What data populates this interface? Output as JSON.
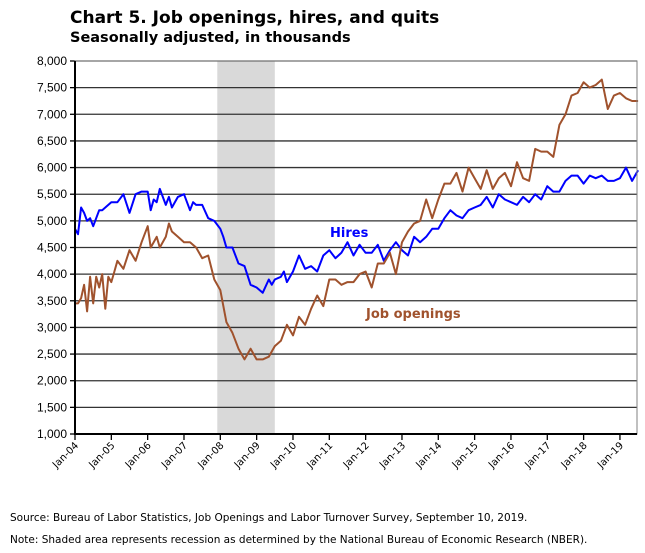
{
  "header": {
    "title": "Chart 5. Job openings, hires, and quits",
    "subtitle": "Seasonally adjusted, in thousands"
  },
  "footer": {
    "source": "Source: Bureau of Labor Statistics, Job Openings and Labor Turnover Survey, September 10, 2019.",
    "note": "Note: Shaded area represents recession as determined by the National Bureau of Economic Research (NBER)."
  },
  "colors": {
    "hires": "#0000ff",
    "job_openings": "#a0522d",
    "recession": "#d9d9d9",
    "grid": "#000000"
  },
  "chart_data": {
    "type": "line",
    "title": "Chart 5. Job openings, hires, and quits",
    "subtitle": "Seasonally adjusted, in thousands",
    "xlabel": "",
    "ylabel": "",
    "ylim": [
      1000,
      8000
    ],
    "yticks": [
      "1,000",
      "1,500",
      "2,000",
      "2,500",
      "3,000",
      "3,500",
      "4,000",
      "4,500",
      "5,000",
      "5,500",
      "6,000",
      "6,500",
      "7,000",
      "7,500",
      "8,000"
    ],
    "xticks": [
      "Jan-04",
      "Jan-05",
      "Jan-06",
      "Jan-07",
      "Jan-08",
      "Jan-09",
      "Jan-10",
      "Jan-11",
      "Jan-12",
      "Jan-13",
      "Jan-14",
      "Jan-15",
      "Jan-16",
      "Jan-17",
      "Jan-18",
      "Jan-19"
    ],
    "grid": true,
    "legend": "inline labels",
    "annotations": [
      {
        "text": "Hires",
        "series": "Hires"
      },
      {
        "text": "Job openings",
        "series": "Job openings"
      }
    ],
    "recession_shading": {
      "start": "Dec-07",
      "end": "Jun-09"
    },
    "x_unit": "months since Jan-04",
    "series": [
      {
        "name": "Hires",
        "x": [
          0,
          1,
          2,
          3,
          4,
          5,
          6,
          7,
          8,
          9,
          10,
          12,
          14,
          16,
          18,
          20,
          22,
          24,
          25,
          26,
          27,
          28,
          30,
          31,
          32,
          34,
          36,
          38,
          39,
          40,
          42,
          44,
          46,
          48,
          49,
          50,
          52,
          54,
          56,
          58,
          60,
          62,
          64,
          65,
          66,
          68,
          69,
          70,
          72,
          74,
          76,
          78,
          80,
          82,
          84,
          86,
          88,
          90,
          92,
          94,
          96,
          98,
          100,
          102,
          104,
          106,
          108,
          110,
          112,
          114,
          116,
          118,
          120,
          122,
          124,
          126,
          128,
          130,
          132,
          134,
          136,
          138,
          140,
          142,
          144,
          146,
          148,
          150,
          152,
          154,
          156,
          158,
          160,
          162,
          164,
          166,
          168,
          170,
          172,
          174,
          176,
          178,
          180,
          182,
          184,
          186
        ],
        "values": [
          4850,
          4750,
          5250,
          5150,
          5000,
          5050,
          4900,
          5050,
          5200,
          5200,
          5250,
          5350,
          5350,
          5500,
          5150,
          5500,
          5550,
          5550,
          5200,
          5400,
          5350,
          5600,
          5300,
          5450,
          5250,
          5450,
          5500,
          5200,
          5350,
          5300,
          5300,
          5050,
          5000,
          4850,
          4700,
          4500,
          4500,
          4200,
          4150,
          3800,
          3750,
          3650,
          3900,
          3800,
          3900,
          3950,
          4050,
          3850,
          4050,
          4350,
          4100,
          4150,
          4050,
          4350,
          4450,
          4300,
          4400,
          4600,
          4350,
          4550,
          4400,
          4400,
          4550,
          4250,
          4450,
          4600,
          4450,
          4350,
          4700,
          4600,
          4700,
          4850,
          4850,
          5050,
          5200,
          5100,
          5050,
          5200,
          5250,
          5300,
          5450,
          5250,
          5500,
          5400,
          5350,
          5300,
          5450,
          5350,
          5500,
          5400,
          5650,
          5550,
          5550,
          5750,
          5850,
          5850,
          5700,
          5850,
          5800,
          5850,
          5750,
          5750,
          5800,
          6000,
          5750,
          5950
        ]
      },
      {
        "name": "Job openings",
        "x": [
          0,
          1,
          2,
          3,
          4,
          5,
          6,
          7,
          8,
          9,
          10,
          11,
          12,
          13,
          14,
          16,
          18,
          20,
          22,
          24,
          25,
          26,
          27,
          28,
          30,
          31,
          32,
          34,
          36,
          38,
          40,
          42,
          44,
          46,
          48,
          50,
          52,
          54,
          56,
          58,
          60,
          62,
          64,
          66,
          68,
          70,
          72,
          74,
          76,
          78,
          80,
          82,
          84,
          86,
          88,
          90,
          92,
          94,
          96,
          98,
          100,
          102,
          104,
          106,
          108,
          110,
          112,
          114,
          116,
          118,
          120,
          122,
          124,
          126,
          128,
          130,
          132,
          134,
          136,
          138,
          140,
          142,
          144,
          146,
          148,
          150,
          152,
          154,
          156,
          158,
          160,
          162,
          164,
          166,
          168,
          170,
          172,
          174,
          176,
          178,
          180,
          182,
          184,
          186
        ],
        "values": [
          3450,
          3450,
          3550,
          3800,
          3300,
          3950,
          3450,
          3950,
          3750,
          4000,
          3350,
          3950,
          3850,
          4050,
          4250,
          4100,
          4450,
          4250,
          4600,
          4900,
          4500,
          4600,
          4700,
          4500,
          4700,
          4950,
          4800,
          4700,
          4600,
          4600,
          4500,
          4300,
          4350,
          3900,
          3700,
          3100,
          2900,
          2600,
          2400,
          2600,
          2400,
          2400,
          2450,
          2650,
          2750,
          3050,
          2850,
          3200,
          3050,
          3350,
          3600,
          3400,
          3900,
          3900,
          3800,
          3850,
          3850,
          4000,
          4050,
          3750,
          4200,
          4200,
          4400,
          4000,
          4600,
          4800,
          4950,
          5000,
          5400,
          5050,
          5400,
          5700,
          5700,
          5900,
          5550,
          6000,
          5800,
          5600,
          5950,
          5600,
          5800,
          5900,
          5650,
          6100,
          5800,
          5750,
          6350,
          6300,
          6300,
          6200,
          6800,
          7000,
          7350,
          7400,
          7600,
          7500,
          7550,
          7650,
          7100,
          7350,
          7400,
          7300,
          7250,
          7250
        ]
      }
    ]
  }
}
